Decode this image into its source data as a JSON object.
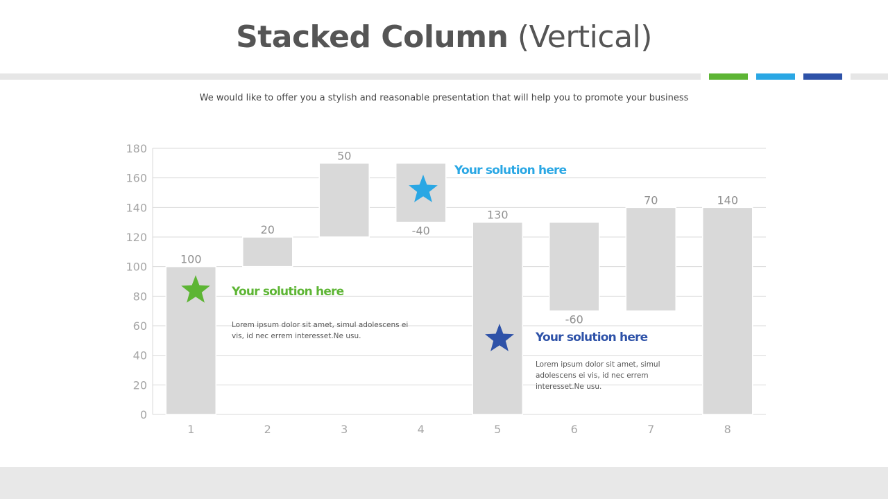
{
  "header": {
    "title_bold": "Stacked Column",
    "title_light": "(Vertical)",
    "subtitle": "We would like to offer you a stylish and reasonable presentation that will help you to promote your business"
  },
  "colors": {
    "green": "#5db534",
    "light_blue": "#2aa7e4",
    "dark_blue": "#2e52a8",
    "bar": "#d9d9d9",
    "axis_text": "#a6a6a6",
    "grid": "#d9d9d9"
  },
  "callouts": [
    {
      "title": "Your solution here",
      "body": "Lorem  ipsum  dolor sit amet,  simul  adolescens  ei vis,  id  nec  errem   interesset.Ne    usu.",
      "color_key": "green"
    },
    {
      "title": "Your solution here",
      "body": "",
      "color_key": "light_blue"
    },
    {
      "title": "Your solution here",
      "body": "Lorem  ipsum  dolor sit amet,  simul adolescens  ei vis,  id  nec errem interesset.Ne    usu.",
      "color_key": "dark_blue"
    }
  ],
  "chart_data": {
    "type": "bar",
    "subtype": "waterfall (stacked column)",
    "categories": [
      "1",
      "2",
      "3",
      "4",
      "5",
      "6",
      "7",
      "8"
    ],
    "values": [
      100,
      20,
      50,
      -40,
      130,
      -60,
      70,
      140
    ],
    "bar_bottom": [
      0,
      100,
      120,
      130,
      0,
      70,
      70,
      0
    ],
    "bar_top": [
      100,
      120,
      170,
      170,
      130,
      130,
      140,
      140
    ],
    "data_labels": [
      "100",
      "20",
      "50",
      "-40",
      "130",
      "-60",
      "70",
      "140"
    ],
    "ylim": [
      0,
      180
    ],
    "yticks": [
      0,
      20,
      40,
      60,
      80,
      100,
      120,
      140,
      160,
      180
    ],
    "grid": true,
    "title": "",
    "xlabel": "",
    "ylabel": ""
  }
}
